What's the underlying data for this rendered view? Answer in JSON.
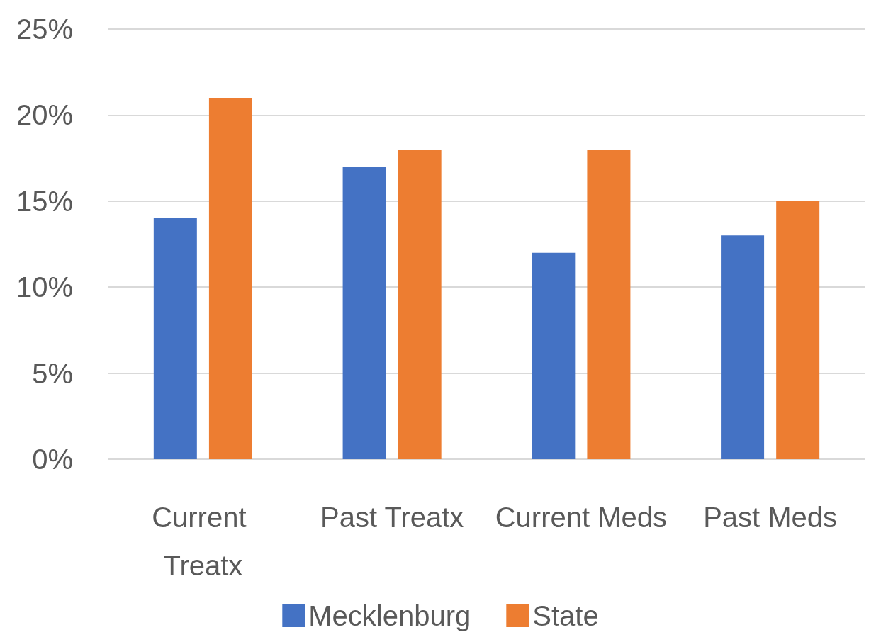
{
  "chart_data": {
    "type": "bar",
    "categories": [
      "Current Treatx",
      "Past Treatx",
      "Current Meds",
      "Past Meds"
    ],
    "series": [
      {
        "name": "Mecklenburg",
        "color": "#4472c4",
        "values": [
          14,
          17,
          12,
          13
        ]
      },
      {
        "name": "State",
        "color": "#ed7d31",
        "values": [
          21,
          18,
          18,
          15
        ]
      }
    ],
    "ylim": [
      0,
      25
    ],
    "yticks": [
      {
        "value": 0,
        "label": "0%"
      },
      {
        "value": 5,
        "label": "5%"
      },
      {
        "value": 10,
        "label": "10%"
      },
      {
        "value": 15,
        "label": "15%"
      },
      {
        "value": 20,
        "label": "20%"
      },
      {
        "value": 25,
        "label": "25%"
      }
    ],
    "grid": "y",
    "legend": "bottom"
  }
}
